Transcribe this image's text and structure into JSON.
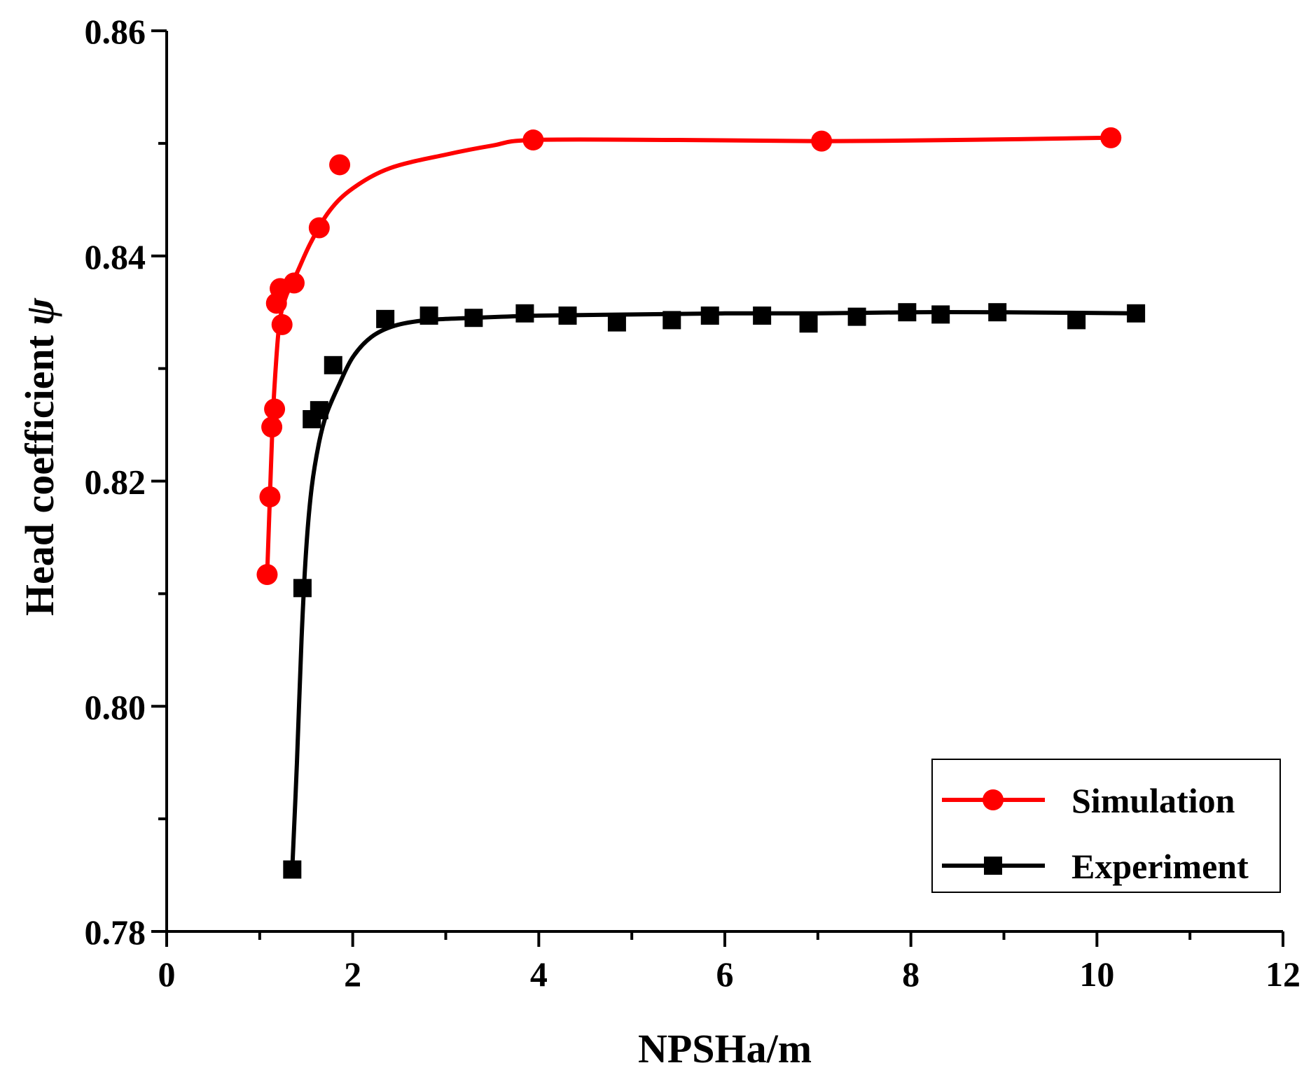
{
  "chart_data": {
    "type": "line",
    "title": "",
    "xlabel": "NPSHa/m",
    "ylabel": "Head coefficient ",
    "ylabel_symbol": "ψ",
    "xlim": [
      0,
      12
    ],
    "ylim": [
      0.78,
      0.86
    ],
    "xticks": [
      0,
      2,
      4,
      6,
      8,
      10,
      12
    ],
    "xtick_labels": [
      "0",
      "2",
      "4",
      "6",
      "8",
      "10",
      "12"
    ],
    "yticks": [
      0.78,
      0.8,
      0.82,
      0.84,
      0.86
    ],
    "ytick_labels": [
      "0.78",
      "0.80",
      "0.82",
      "0.84",
      "0.86"
    ],
    "grid": false,
    "legend_position": "bottom-right",
    "series": [
      {
        "name": "Simulation",
        "color": "#ff0000",
        "marker": "circle",
        "x": [
          1.08,
          1.11,
          1.13,
          1.16,
          1.18,
          1.22,
          1.24,
          1.37,
          1.64,
          1.86,
          3.94,
          7.04,
          10.15
        ],
        "y": [
          0.8117,
          0.8186,
          0.8248,
          0.8264,
          0.8358,
          0.8371,
          0.8339,
          0.8376,
          0.8425,
          0.8481,
          0.8503,
          0.8502,
          0.8505
        ],
        "curve": [
          [
            1.08,
            0.8117
          ],
          [
            1.11,
            0.8186
          ],
          [
            1.14,
            0.8255
          ],
          [
            1.18,
            0.831
          ],
          [
            1.22,
            0.8345
          ],
          [
            1.3,
            0.8368
          ],
          [
            1.4,
            0.8385
          ],
          [
            1.55,
            0.8412
          ],
          [
            1.75,
            0.844
          ],
          [
            2.0,
            0.846
          ],
          [
            2.4,
            0.8478
          ],
          [
            3.0,
            0.849
          ],
          [
            3.5,
            0.8498
          ],
          [
            3.94,
            0.8503
          ],
          [
            5.5,
            0.8503
          ],
          [
            7.04,
            0.8502
          ],
          [
            8.5,
            0.8503
          ],
          [
            10.15,
            0.8505
          ]
        ]
      },
      {
        "name": "Experiment",
        "color": "#000000",
        "marker": "square",
        "x": [
          1.35,
          1.46,
          1.56,
          1.64,
          1.79,
          2.35,
          2.82,
          3.3,
          3.85,
          4.31,
          4.84,
          5.43,
          5.84,
          6.4,
          6.9,
          7.42,
          7.96,
          8.32,
          8.93,
          9.78,
          10.42
        ],
        "y": [
          0.7855,
          0.8105,
          0.8255,
          0.8263,
          0.8303,
          0.8344,
          0.8347,
          0.8345,
          0.8349,
          0.8347,
          0.8341,
          0.8343,
          0.8347,
          0.8347,
          0.834,
          0.8346,
          0.835,
          0.8348,
          0.835,
          0.8343,
          0.8349
        ],
        "curve": [
          [
            1.35,
            0.7855
          ],
          [
            1.4,
            0.795
          ],
          [
            1.45,
            0.806
          ],
          [
            1.5,
            0.814
          ],
          [
            1.56,
            0.8195
          ],
          [
            1.64,
            0.8235
          ],
          [
            1.72,
            0.826
          ],
          [
            1.85,
            0.8285
          ],
          [
            2.0,
            0.831
          ],
          [
            2.2,
            0.8328
          ],
          [
            2.45,
            0.8338
          ],
          [
            2.8,
            0.8343
          ],
          [
            3.3,
            0.8345
          ],
          [
            4.0,
            0.8347
          ],
          [
            5.0,
            0.8348
          ],
          [
            6.0,
            0.8349
          ],
          [
            7.0,
            0.8349
          ],
          [
            8.0,
            0.835
          ],
          [
            9.0,
            0.835
          ],
          [
            10.42,
            0.8349
          ]
        ]
      }
    ]
  }
}
